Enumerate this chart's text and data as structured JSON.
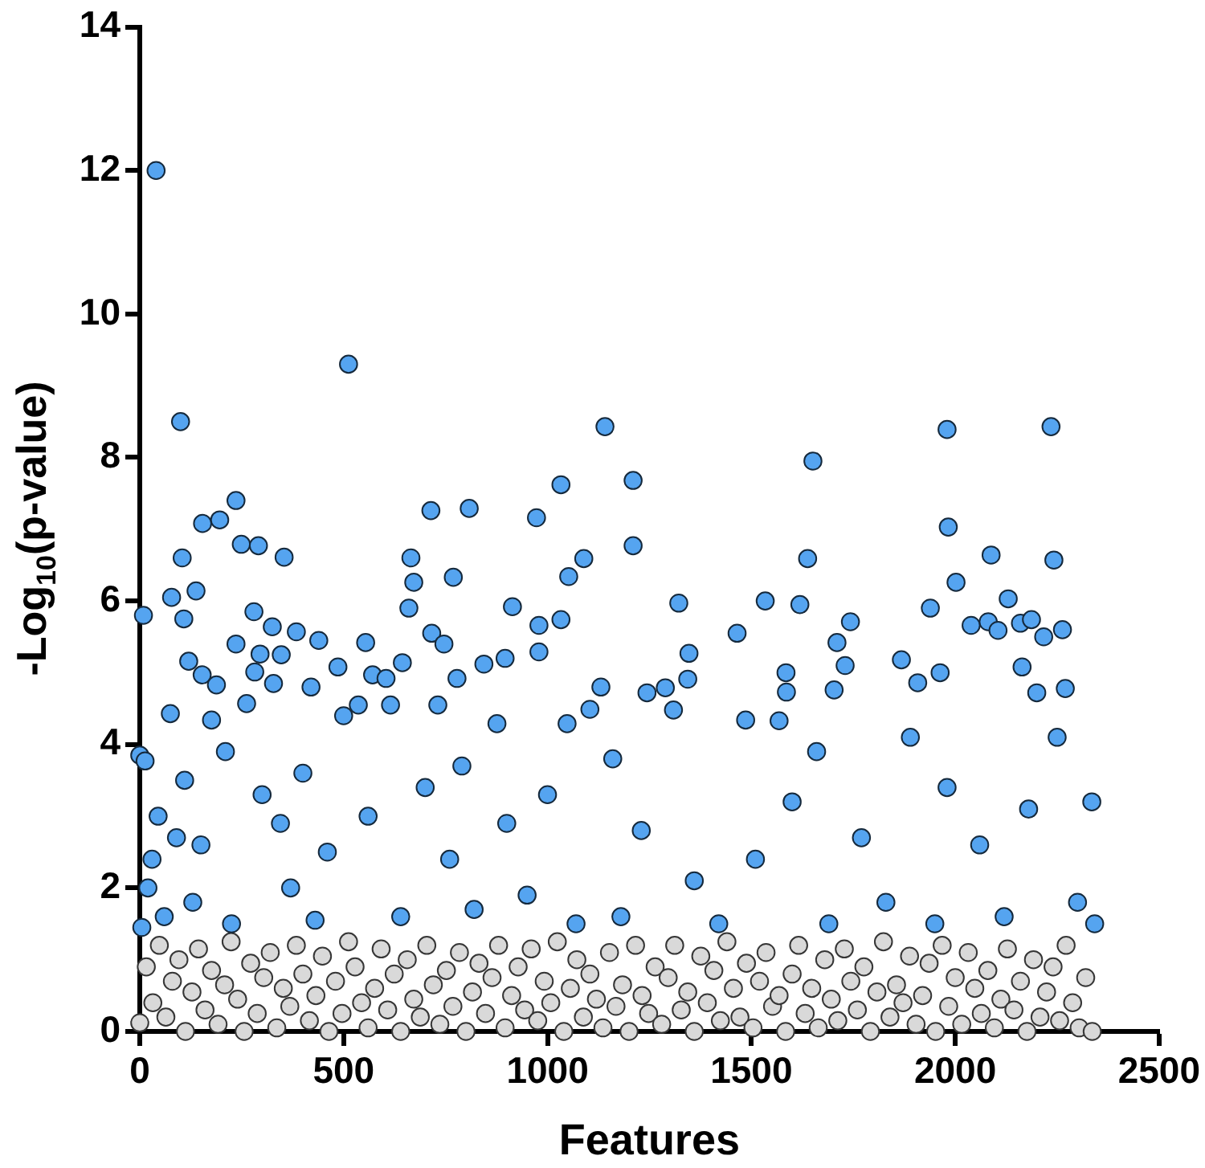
{
  "chart_data": {
    "type": "scatter",
    "xlabel": "Features",
    "ylabel": "-Log$_{10}$(p-value)",
    "xlim": [
      0,
      2500
    ],
    "xticks": [
      0,
      500,
      1000,
      1500,
      2000,
      2500
    ],
    "ylim": [
      0,
      14
    ],
    "yticks": [
      0,
      2,
      4,
      6,
      8,
      10,
      12,
      14
    ],
    "marker": "circle",
    "series": [
      {
        "color": "#55a4f0",
        "x": [
          40,
          100,
          512,
          154,
          196,
          236,
          714,
          808,
          973,
          1033,
          1141,
          1210,
          1651,
          1980,
          2235,
          1983,
          9,
          104,
          138,
          78,
          108,
          249,
          291,
          354,
          665,
          672,
          660,
          769,
          1089,
          1052,
          914,
          1033,
          979,
          716,
          746,
          325,
          280,
          384,
          439,
          236,
          554,
          120,
          486,
          644,
          844,
          896,
          979,
          295,
          347,
          282,
          153,
          188,
          328,
          420,
          571,
          604,
          778,
          1131,
          1210,
          1638,
          2088,
          2242,
          2002,
          1322,
          1534,
          1619,
          1939,
          2130,
          1743,
          2039,
          2081,
          2105,
          2160,
          2187,
          2217,
          2263,
          1465,
          1710,
          1347,
          1344,
          1868,
          2164,
          1585,
          1586,
          1730,
          1963,
          1908,
          1703,
          1244,
          1289,
          2200,
          2270,
          0,
          13,
          5,
          20,
          30,
          45,
          60,
          75,
          90,
          110,
          130,
          150,
          176,
          210,
          225,
          262,
          300,
          345,
          370,
          400,
          430,
          460,
          500,
          536,
          560,
          615,
          640,
          700,
          731,
          760,
          790,
          820,
          876,
          900,
          950,
          1000,
          1048,
          1070,
          1104,
          1160,
          1180,
          1230,
          1309,
          1360,
          1420,
          1486,
          1510,
          1568,
          1600,
          1660,
          1690,
          1770,
          1830,
          1890,
          1950,
          1980,
          2060,
          2120,
          2180,
          2250,
          2300,
          2342,
          2335
        ],
        "values": [
          12.0,
          8.5,
          9.3,
          7.08,
          7.13,
          7.4,
          7.26,
          7.29,
          7.16,
          7.62,
          8.43,
          7.68,
          7.95,
          8.39,
          8.43,
          7.03,
          5.8,
          6.6,
          6.14,
          6.05,
          5.75,
          6.79,
          6.77,
          6.61,
          6.6,
          6.26,
          5.9,
          6.33,
          6.59,
          6.34,
          5.92,
          5.74,
          5.66,
          5.55,
          5.4,
          5.64,
          5.85,
          5.57,
          5.45,
          5.4,
          5.42,
          5.16,
          5.08,
          5.14,
          5.12,
          5.2,
          5.29,
          5.26,
          5.25,
          5.01,
          4.97,
          4.83,
          4.85,
          4.8,
          4.97,
          4.92,
          4.92,
          4.8,
          6.77,
          6.59,
          6.64,
          6.57,
          6.26,
          5.97,
          6.0,
          5.95,
          5.9,
          6.03,
          5.71,
          5.66,
          5.71,
          5.59,
          5.69,
          5.74,
          5.5,
          5.6,
          5.55,
          5.42,
          5.27,
          4.91,
          5.18,
          5.08,
          5.0,
          4.73,
          5.1,
          5.0,
          4.86,
          4.76,
          4.72,
          4.79,
          4.72,
          4.78,
          3.85,
          3.77,
          1.45,
          2.0,
          2.4,
          3.0,
          1.6,
          4.43,
          2.7,
          3.5,
          1.8,
          2.6,
          4.34,
          3.9,
          1.5,
          4.57,
          3.3,
          2.9,
          2.0,
          3.6,
          1.55,
          2.5,
          4.4,
          4.55,
          3.0,
          4.55,
          1.6,
          3.4,
          4.55,
          2.4,
          3.7,
          1.7,
          4.29,
          2.9,
          1.9,
          3.3,
          4.29,
          1.5,
          4.49,
          3.8,
          1.6,
          2.8,
          4.48,
          2.1,
          1.5,
          4.34,
          2.4,
          4.33,
          3.2,
          3.9,
          1.5,
          2.7,
          1.8,
          4.1,
          1.5,
          3.4,
          2.6,
          1.6,
          3.1,
          4.1,
          1.8,
          1.5,
          3.2
        ]
      },
      {
        "color": "#d9d9d9",
        "x": [
          0,
          16,
          32,
          48,
          64,
          80,
          96,
          112,
          128,
          144,
          160,
          176,
          192,
          208,
          224,
          240,
          256,
          272,
          288,
          304,
          320,
          336,
          352,
          368,
          384,
          400,
          416,
          432,
          448,
          464,
          480,
          496,
          512,
          528,
          544,
          560,
          576,
          592,
          608,
          624,
          640,
          656,
          672,
          688,
          704,
          720,
          736,
          752,
          768,
          784,
          800,
          816,
          832,
          848,
          864,
          880,
          896,
          912,
          928,
          944,
          960,
          976,
          992,
          1008,
          1024,
          1040,
          1056,
          1072,
          1088,
          1104,
          1120,
          1136,
          1152,
          1168,
          1184,
          1200,
          1216,
          1232,
          1248,
          1264,
          1280,
          1296,
          1312,
          1328,
          1344,
          1360,
          1376,
          1392,
          1408,
          1424,
          1440,
          1456,
          1472,
          1488,
          1504,
          1520,
          1536,
          1552,
          1568,
          1584,
          1600,
          1616,
          1632,
          1648,
          1664,
          1680,
          1696,
          1712,
          1728,
          1744,
          1760,
          1776,
          1792,
          1808,
          1824,
          1840,
          1856,
          1872,
          1888,
          1904,
          1920,
          1936,
          1952,
          1968,
          1984,
          2000,
          2016,
          2032,
          2048,
          2064,
          2080,
          2096,
          2112,
          2128,
          2144,
          2160,
          2176,
          2192,
          2208,
          2224,
          2240,
          2256,
          2272,
          2288,
          2304,
          2320,
          2336
        ],
        "values": [
          0.12,
          0.9,
          0.4,
          1.2,
          0.2,
          0.7,
          1.0,
          0.0,
          0.55,
          1.15,
          0.3,
          0.85,
          0.1,
          0.65,
          1.25,
          0.45,
          0.0,
          0.95,
          0.25,
          0.75,
          1.1,
          0.05,
          0.6,
          0.35,
          1.2,
          0.8,
          0.15,
          0.5,
          1.05,
          0.0,
          0.7,
          0.25,
          1.25,
          0.9,
          0.4,
          0.05,
          0.6,
          1.15,
          0.3,
          0.8,
          0.0,
          1.0,
          0.45,
          0.2,
          1.2,
          0.65,
          0.1,
          0.85,
          0.35,
          1.1,
          0.0,
          0.55,
          0.95,
          0.25,
          0.75,
          1.2,
          0.05,
          0.5,
          0.9,
          0.3,
          1.15,
          0.15,
          0.7,
          0.4,
          1.25,
          0.0,
          0.6,
          1.0,
          0.2,
          0.8,
          0.45,
          0.05,
          1.1,
          0.35,
          0.65,
          0.0,
          1.2,
          0.5,
          0.25,
          0.9,
          0.1,
          0.75,
          1.2,
          0.3,
          0.55,
          0.0,
          1.05,
          0.4,
          0.85,
          0.15,
          1.25,
          0.6,
          0.2,
          0.95,
          0.05,
          0.7,
          1.1,
          0.35,
          0.5,
          0.0,
          0.8,
          1.2,
          0.25,
          0.6,
          0.05,
          1.0,
          0.45,
          0.15,
          1.15,
          0.7,
          0.3,
          0.9,
          0.0,
          0.55,
          1.25,
          0.2,
          0.65,
          0.4,
          1.05,
          0.1,
          0.5,
          0.95,
          0.0,
          1.2,
          0.35,
          0.75,
          0.1,
          1.1,
          0.6,
          0.25,
          0.85,
          0.05,
          0.45,
          1.15,
          0.3,
          0.7,
          0.0,
          1.0,
          0.2,
          0.55,
          0.9,
          0.15,
          1.2,
          0.4,
          0.05,
          0.75,
          0.0
        ]
      }
    ]
  }
}
